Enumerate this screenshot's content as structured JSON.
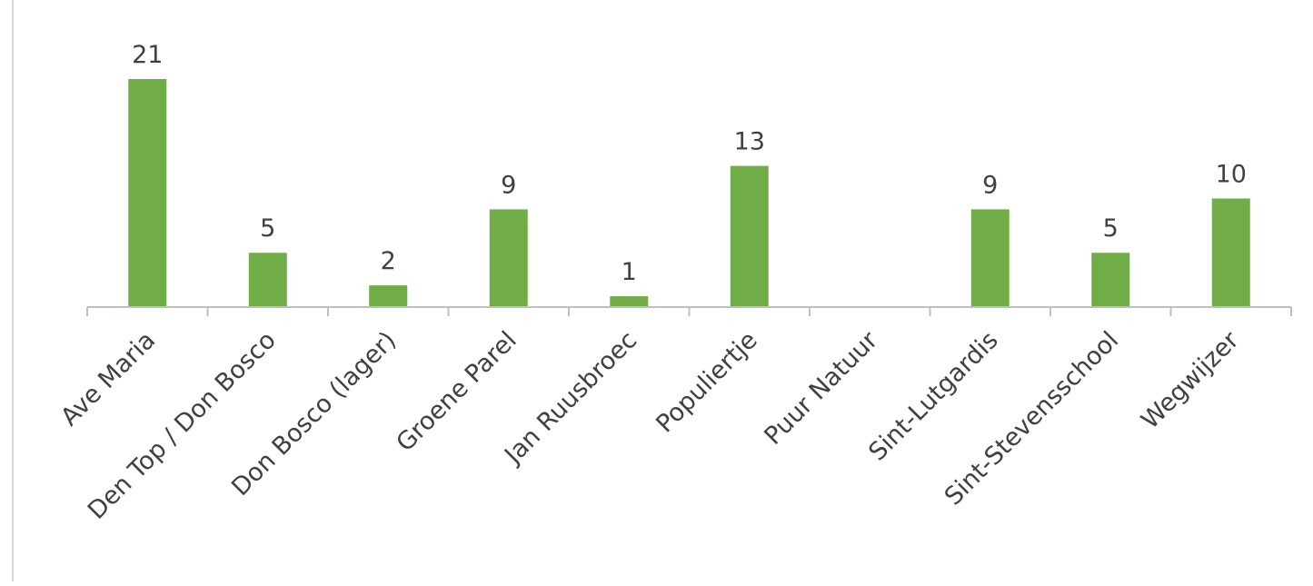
{
  "chart_data": {
    "type": "bar",
    "title": "",
    "xlabel": "",
    "ylabel": "",
    "categories": [
      "Ave Maria",
      "Den Top / Don Bosco",
      "Don Bosco (lager)",
      "Groene Parel",
      "Jan Ruusbroec",
      "Populiertje",
      "Puur Natuur",
      "Sint-Lutgardis",
      "Sint-Stevensschool",
      "Wegwijzer"
    ],
    "values": [
      21,
      5,
      2,
      9,
      1,
      13,
      0,
      9,
      5,
      10
    ],
    "data_labels": [
      "21",
      "5",
      "2",
      "9",
      "1",
      "13",
      "",
      "9",
      "5",
      "10"
    ],
    "ylim": [
      0,
      21
    ],
    "grid": false,
    "legend": "none",
    "bar_color": "#70ad47",
    "axis_color": "#bfbfbf",
    "label_color": "#404040"
  }
}
